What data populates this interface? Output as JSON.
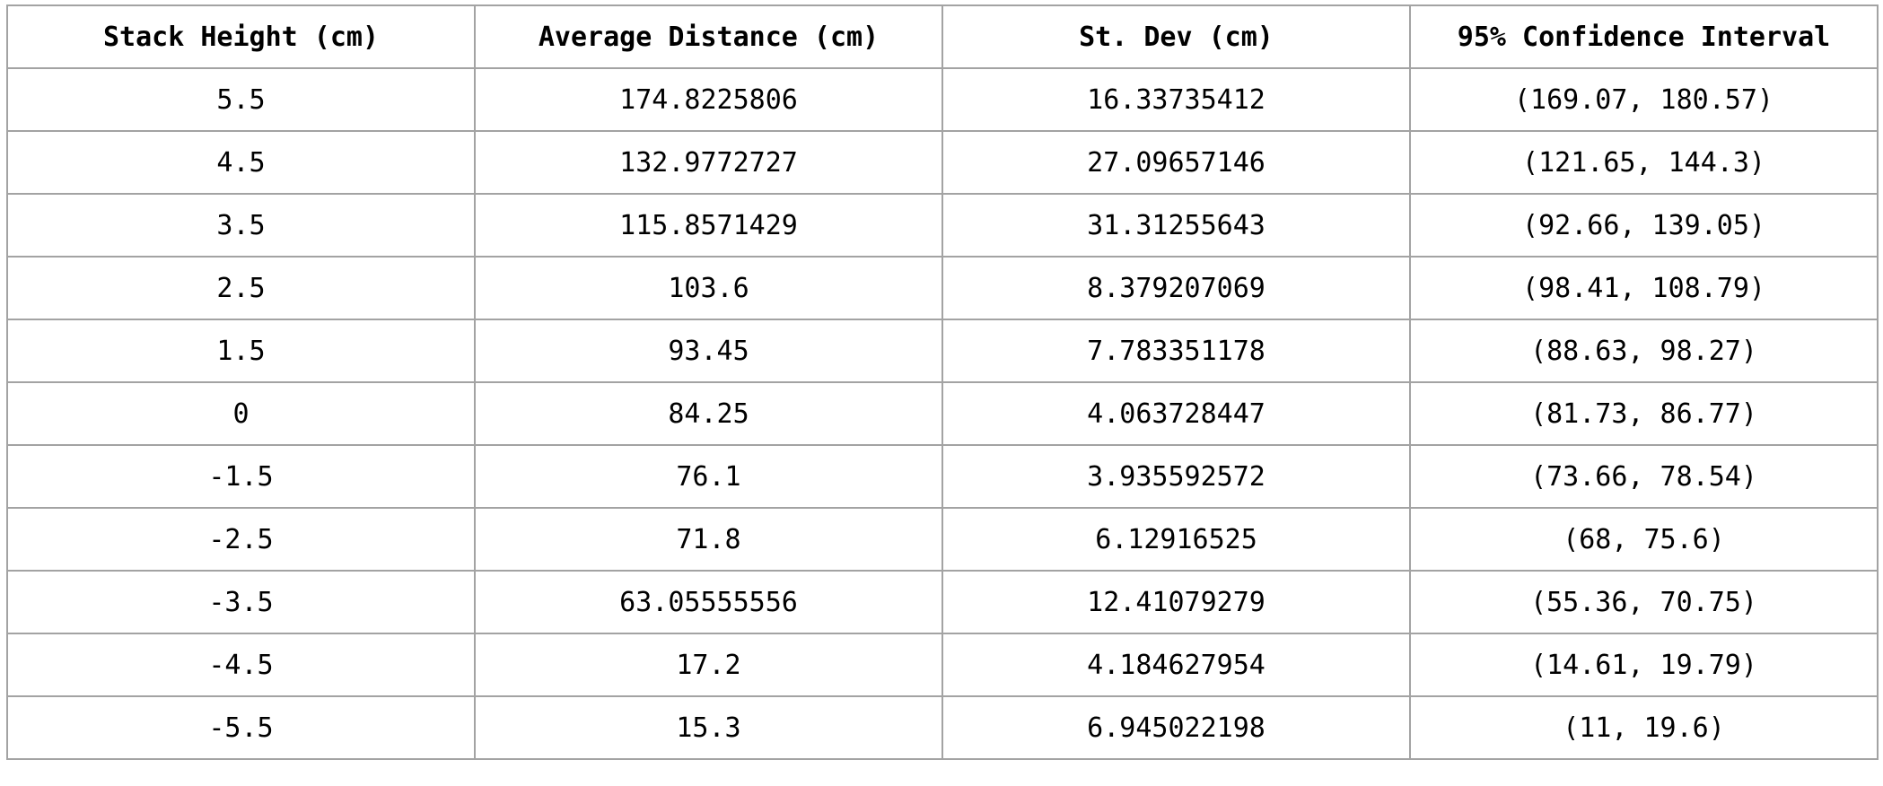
{
  "table": {
    "headers": [
      "Stack Height (cm)",
      "Average Distance (cm)",
      "St. Dev (cm)",
      "95% Confidence Interval"
    ],
    "rows": [
      [
        "5.5",
        "174.8225806",
        "16.33735412",
        "(169.07, 180.57)"
      ],
      [
        "4.5",
        "132.9772727",
        "27.09657146",
        "(121.65, 144.3)"
      ],
      [
        "3.5",
        "115.8571429",
        "31.31255643",
        "(92.66, 139.05)"
      ],
      [
        "2.5",
        "103.6",
        "8.379207069",
        "(98.41, 108.79)"
      ],
      [
        "1.5",
        "93.45",
        "7.783351178",
        "(88.63, 98.27)"
      ],
      [
        "0",
        "84.25",
        "4.063728447",
        "(81.73, 86.77)"
      ],
      [
        "-1.5",
        "76.1",
        "3.935592572",
        "(73.66, 78.54)"
      ],
      [
        "-2.5",
        "71.8",
        "6.12916525",
        "(68, 75.6)"
      ],
      [
        "-3.5",
        "63.05555556",
        "12.41079279",
        "(55.36, 70.75)"
      ],
      [
        "-4.5",
        "17.2",
        "4.184627954",
        "(14.61, 19.79)"
      ],
      [
        "-5.5",
        "15.3",
        "6.945022198",
        "(11, 19.6)"
      ]
    ]
  }
}
